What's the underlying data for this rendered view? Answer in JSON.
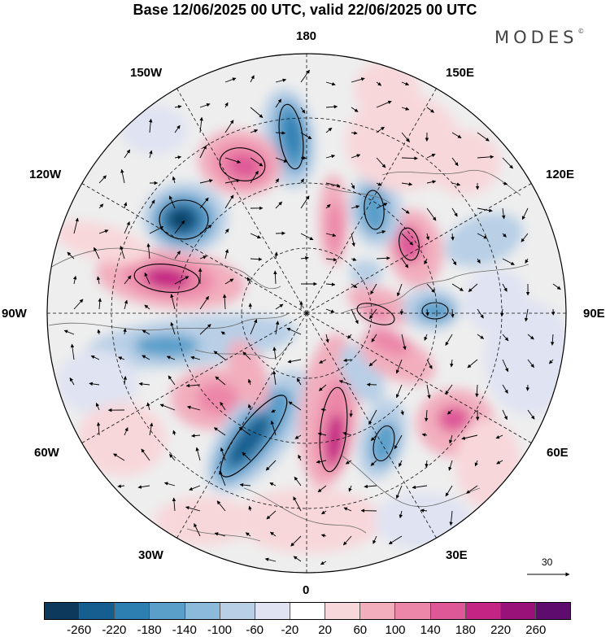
{
  "title": "Base 12/06/2025 00 UTC, valid 22/06/2025 00 UTC",
  "logo": "MODES",
  "logo_mark": "©",
  "longitude_labels": {
    "lon_180": "180",
    "lon_150w": "150W",
    "lon_150e": "150E",
    "lon_120w": "120W",
    "lon_120e": "120E",
    "lon_90w": "90W",
    "lon_90e": "90E",
    "lon_60w": "60W",
    "lon_60e": "60E",
    "lon_30w": "30W",
    "lon_30e": "30E",
    "lon_0": "0"
  },
  "reference_vector": "30",
  "colorbar": {
    "colors": [
      "#0d3a5c",
      "#145f8f",
      "#2d7fb2",
      "#5a9fca",
      "#8cbadb",
      "#b8cfe6",
      "#dfe3f2",
      "#ffffff",
      "#f8d7da",
      "#f2aebd",
      "#ec87a9",
      "#de5897",
      "#c42484",
      "#98127a",
      "#5e0c6d"
    ],
    "ticks": [
      "-260",
      "-220",
      "-180",
      "-140",
      "-100",
      "-60",
      "-20",
      "20",
      "60",
      "100",
      "140",
      "180",
      "220",
      "260"
    ]
  },
  "chart_data": {
    "type": "map",
    "projection": "north polar stereographic",
    "field": "filled anomaly contours",
    "levels": [
      -260,
      -220,
      -180,
      -140,
      -100,
      -60,
      -20,
      20,
      60,
      100,
      140,
      180,
      220,
      260
    ]
  }
}
